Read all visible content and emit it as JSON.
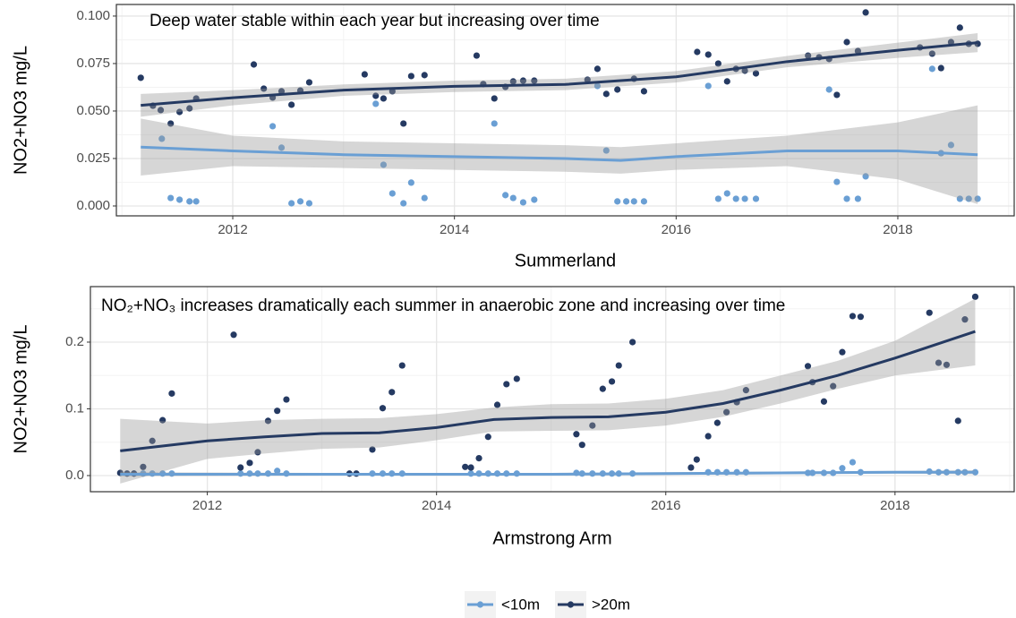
{
  "chart_data": [
    {
      "type": "scatter",
      "xlabel": "Summerland",
      "ylabel": "NO2+NO3   mg/L",
      "annotation": "Deep water stable within each year but increasing over time",
      "xlim": [
        2010.95,
        2019.05
      ],
      "xticks": [
        2012,
        2014,
        2016,
        2018
      ],
      "ylim": [
        -0.0052,
        0.1061
      ],
      "yticks": [
        {
          "value": 0,
          "label": "0.000"
        },
        0.025,
        {
          "value": 0.05,
          "label": "0.050"
        },
        0.075,
        {
          "value": 0.1,
          "label": "0.100"
        }
      ],
      "grid": true,
      "series": [
        {
          "name": "<10m",
          "color": "#6a9fd4",
          "x": [
            2011.36,
            2011.44,
            2011.52,
            2011.61,
            2011.67,
            2012.36,
            2012.44,
            2012.53,
            2012.61,
            2012.69,
            2013.29,
            2013.36,
            2013.44,
            2013.54,
            2013.61,
            2013.73,
            2014.36,
            2014.46,
            2014.53,
            2014.62,
            2014.72,
            2015.29,
            2015.37,
            2015.47,
            2015.55,
            2015.62,
            2015.71,
            2016.29,
            2016.38,
            2016.46,
            2016.54,
            2016.62,
            2016.72,
            2017.38,
            2017.45,
            2017.54,
            2017.64,
            2017.71,
            2018.31,
            2018.39,
            2018.48,
            2018.56,
            2018.64,
            2018.72
          ],
          "values": [
            0.0354,
            0.0042,
            0.0033,
            0.0024,
            0.0024,
            0.042,
            0.0307,
            0.0014,
            0.0024,
            0.0014,
            0.0538,
            0.0217,
            0.0066,
            0.0014,
            0.0123,
            0.0042,
            0.0434,
            0.0057,
            0.0042,
            0.0019,
            0.0033,
            0.0632,
            0.0292,
            0.0024,
            0.0024,
            0.0024,
            0.0024,
            0.0632,
            0.0038,
            0.0066,
            0.0038,
            0.0038,
            0.0038,
            0.0613,
            0.0127,
            0.0038,
            0.0038,
            0.0156,
            0.0722,
            0.0278,
            0.0321,
            0.0038,
            0.0038,
            0.0038
          ],
          "fit": {
            "x": [
              2011.17,
              2012,
              2013,
              2014,
              2015,
              2015.5,
              2016,
              2017,
              2018,
              2018.72
            ],
            "values": [
              0.031,
              0.029,
              0.027,
              0.026,
              0.025,
              0.024,
              0.026,
              0.029,
              0.029,
              0.027
            ],
            "lower": [
              0.016,
              0.021,
              0.02,
              0.019,
              0.018,
              0.017,
              0.019,
              0.021,
              0.014,
              0.001
            ],
            "upper": [
              0.046,
              0.037,
              0.034,
              0.033,
              0.032,
              0.031,
              0.033,
              0.037,
              0.044,
              0.053
            ]
          }
        },
        {
          "name": ">20m",
          "color": "#253a62",
          "x": [
            2011.17,
            2011.28,
            2011.35,
            2011.44,
            2011.52,
            2011.61,
            2011.67,
            2012.19,
            2012.28,
            2012.36,
            2012.44,
            2012.53,
            2012.61,
            2012.69,
            2013.19,
            2013.29,
            2013.36,
            2013.44,
            2013.54,
            2013.61,
            2013.73,
            2014.2,
            2014.26,
            2014.36,
            2014.46,
            2014.53,
            2014.62,
            2014.72,
            2015.2,
            2015.29,
            2015.37,
            2015.47,
            2015.62,
            2015.71,
            2016.19,
            2016.29,
            2016.38,
            2016.46,
            2016.54,
            2016.62,
            2016.72,
            2017.19,
            2017.29,
            2017.38,
            2017.45,
            2017.54,
            2017.64,
            2017.71,
            2018.2,
            2018.31,
            2018.39,
            2018.48,
            2018.56,
            2018.64,
            2018.72
          ],
          "values": [
            0.0675,
            0.0528,
            0.0505,
            0.0434,
            0.0495,
            0.0514,
            0.0566,
            0.0745,
            0.0618,
            0.0571,
            0.0604,
            0.0533,
            0.0608,
            0.0651,
            0.0693,
            0.058,
            0.0566,
            0.0604,
            0.0434,
            0.0684,
            0.0689,
            0.0792,
            0.0642,
            0.0566,
            0.0627,
            0.0656,
            0.066,
            0.066,
            0.0665,
            0.0722,
            0.059,
            0.0613,
            0.067,
            0.0604,
            0.0811,
            0.0797,
            0.075,
            0.0656,
            0.0722,
            0.0712,
            0.0698,
            0.0792,
            0.0783,
            0.0774,
            0.0585,
            0.0863,
            0.0816,
            0.1019,
            0.0835,
            0.0802,
            0.0726,
            0.0863,
            0.0939,
            0.0854,
            0.0854
          ],
          "fit": {
            "x": [
              2011.17,
              2012,
              2013,
              2014,
              2015,
              2016,
              2017,
              2018,
              2018.72
            ],
            "values": [
              0.053,
              0.057,
              0.061,
              0.063,
              0.064,
              0.068,
              0.076,
              0.082,
              0.086
            ],
            "lower": [
              0.047,
              0.053,
              0.058,
              0.06,
              0.061,
              0.065,
              0.073,
              0.078,
              0.081
            ],
            "upper": [
              0.059,
              0.061,
              0.064,
              0.066,
              0.067,
              0.071,
              0.079,
              0.086,
              0.091
            ]
          }
        }
      ]
    },
    {
      "type": "scatter",
      "xlabel": "Armstrong Arm",
      "ylabel": "NO2+NO3   mg/L",
      "annotation": "NO₂+NO₃ increases dramatically each summer in anaerobic zone and increasing over time",
      "xlim": [
        2010.98,
        2019.04
      ],
      "xticks": [
        2012,
        2014,
        2016,
        2018
      ],
      "ylim": [
        -0.0242,
        0.2832
      ],
      "yticks": [
        {
          "value": 0,
          "label": "0.0"
        },
        0.1,
        0.2
      ],
      "grid": true,
      "series": [
        {
          "name": "<10m",
          "color": "#6a9fd4",
          "x": [
            2011.36,
            2011.44,
            2011.52,
            2011.61,
            2011.69,
            2012.29,
            2012.37,
            2012.44,
            2012.53,
            2012.61,
            2012.69,
            2013.44,
            2013.53,
            2013.61,
            2013.7,
            2014.3,
            2014.37,
            2014.45,
            2014.53,
            2014.61,
            2014.7,
            2015.22,
            2015.27,
            2015.36,
            2015.45,
            2015.53,
            2015.59,
            2015.71,
            2016.37,
            2016.45,
            2016.53,
            2016.62,
            2016.7,
            2017.24,
            2017.28,
            2017.38,
            2017.46,
            2017.54,
            2017.63,
            2017.7,
            2018.3,
            2018.38,
            2018.45,
            2018.55,
            2018.61,
            2018.7
          ],
          "values": [
            0.003,
            0.003,
            0.003,
            0.003,
            0.003,
            0.003,
            0.003,
            0.003,
            0.003,
            0.007,
            0.003,
            0.003,
            0.003,
            0.003,
            0.003,
            0.003,
            0.003,
            0.003,
            0.003,
            0.003,
            0.003,
            0.004,
            0.003,
            0.003,
            0.003,
            0.003,
            0.003,
            0.003,
            0.005,
            0.005,
            0.005,
            0.005,
            0.005,
            0.004,
            0.004,
            0.004,
            0.004,
            0.011,
            0.02,
            0.005,
            0.006,
            0.005,
            0.005,
            0.005,
            0.005,
            0.005
          ],
          "fit": {
            "x": [
              2011.24,
              2013,
              2015,
              2016,
              2017,
              2018,
              2018.7
            ],
            "values": [
              0.002,
              0.002,
              0.002,
              0.003,
              0.004,
              0.005,
              0.005
            ],
            "lower": [
              -0.001,
              0,
              0,
              0.001,
              0.002,
              0.003,
              0.002
            ],
            "upper": [
              0.005,
              0.004,
              0.004,
              0.005,
              0.006,
              0.007,
              0.008
            ]
          }
        },
        {
          "name": ">20m",
          "color": "#253a62",
          "x": [
            2011.24,
            2011.3,
            2011.36,
            2011.44,
            2011.52,
            2011.61,
            2011.69,
            2012.23,
            2012.29,
            2012.37,
            2012.44,
            2012.53,
            2012.61,
            2012.69,
            2013.24,
            2013.3,
            2013.44,
            2013.53,
            2013.61,
            2013.7,
            2014.25,
            2014.3,
            2014.37,
            2014.45,
            2014.53,
            2014.61,
            2014.7,
            2015.22,
            2015.27,
            2015.36,
            2015.45,
            2015.53,
            2015.59,
            2015.71,
            2016.22,
            2016.27,
            2016.37,
            2016.45,
            2016.53,
            2016.62,
            2016.7,
            2017.24,
            2017.28,
            2017.38,
            2017.46,
            2017.54,
            2017.63,
            2017.7,
            2018.3,
            2018.38,
            2018.45,
            2018.55,
            2018.61,
            2018.7
          ],
          "values": [
            0.004,
            0.003,
            0.003,
            0.013,
            0.052,
            0.083,
            0.123,
            0.211,
            0.012,
            0.019,
            0.035,
            0.082,
            0.097,
            0.114,
            0.003,
            0.003,
            0.039,
            0.101,
            0.125,
            0.165,
            0.013,
            0.012,
            0.026,
            0.058,
            0.106,
            0.137,
            0.145,
            0.062,
            0.046,
            0.075,
            0.13,
            0.141,
            0.165,
            0.2,
            0.012,
            0.024,
            0.059,
            0.079,
            0.095,
            0.11,
            0.128,
            0.164,
            0.14,
            0.111,
            0.134,
            0.185,
            0.239,
            0.238,
            0.244,
            0.169,
            0.166,
            0.082,
            0.234,
            0.268
          ],
          "fit": {
            "x": [
              2011.24,
              2012,
              2012.5,
              2013,
              2013.5,
              2014,
              2014.5,
              2015,
              2015.5,
              2016,
              2016.5,
              2017,
              2017.5,
              2018,
              2018.7
            ],
            "values": [
              0.037,
              0.052,
              0.058,
              0.063,
              0.064,
              0.072,
              0.084,
              0.087,
              0.088,
              0.095,
              0.108,
              0.128,
              0.15,
              0.176,
              0.216
            ],
            "lower": [
              -0.012,
              0.025,
              0.033,
              0.04,
              0.042,
              0.053,
              0.066,
              0.067,
              0.068,
              0.075,
              0.088,
              0.108,
              0.13,
              0.15,
              0.165
            ],
            "upper": [
              0.085,
              0.078,
              0.083,
              0.085,
              0.086,
              0.092,
              0.102,
              0.107,
              0.108,
              0.115,
              0.128,
              0.15,
              0.172,
              0.202,
              0.265
            ]
          }
        }
      ]
    }
  ]
}
